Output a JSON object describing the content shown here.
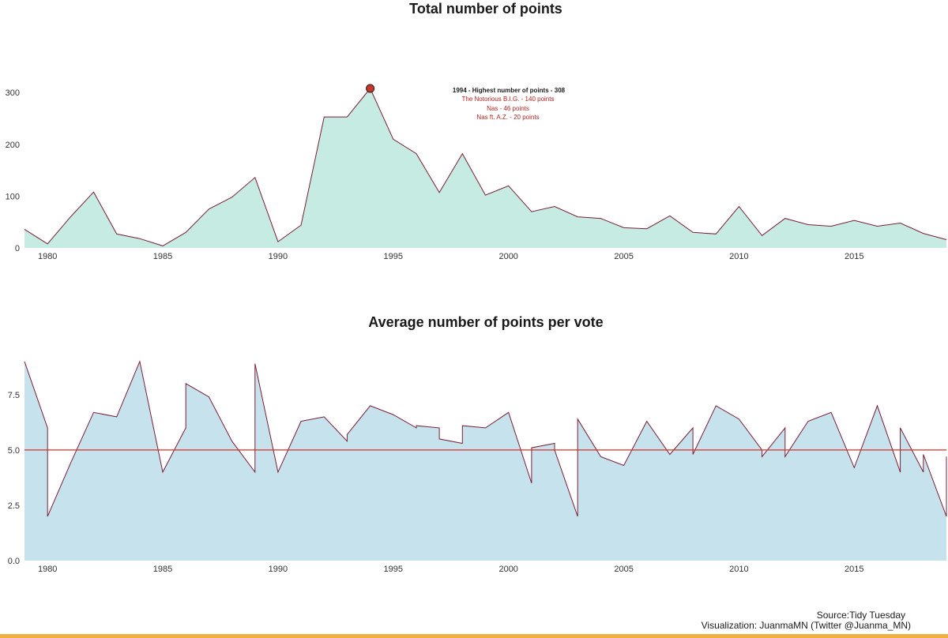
{
  "colors": {
    "area1": "#c5ebe2",
    "area2": "#c6e3ed",
    "line": "#7a1f35",
    "reference": "#d73027",
    "peak": "#c0392b",
    "annotation": "#b22222",
    "bottom_bar": "#f0b040"
  },
  "chart_data": [
    {
      "type": "area",
      "title": "Total number of points",
      "xlabel": "",
      "ylabel": "",
      "xlim": [
        1979,
        2019
      ],
      "ylim": [
        0,
        340
      ],
      "grid": false,
      "x_ticks": [
        "1980",
        "1985",
        "1990",
        "1995",
        "2000",
        "2005",
        "2010",
        "2015"
      ],
      "y_ticks": [
        "0",
        "100",
        "200",
        "300"
      ],
      "series": [
        {
          "x": [
            1979,
            1980,
            1981,
            1982,
            1983,
            1984,
            1985,
            1986,
            1987,
            1988,
            1989,
            1990,
            1991,
            1992,
            1993,
            1994,
            1995,
            1996,
            1997,
            1998,
            1999,
            2000,
            2001,
            2002,
            2003,
            2004,
            2005,
            2006,
            2007,
            2008,
            2009,
            2010,
            2011,
            2012,
            2013,
            2014,
            2015,
            2016,
            2017,
            2018,
            2019
          ],
          "values": [
            36,
            8,
            60,
            108,
            27,
            18,
            4,
            30,
            75,
            98,
            136,
            12,
            44,
            253,
            253,
            308,
            210,
            182,
            107,
            182,
            102,
            120,
            70,
            80,
            60,
            57,
            39,
            37,
            62,
            30,
            27,
            80,
            24,
            57,
            45,
            42,
            53,
            42,
            48,
            28,
            16
          ]
        }
      ],
      "highlight": {
        "x": 1994,
        "y": 308
      },
      "annotation": {
        "heading": "1994 - Highest number of points - 308",
        "lines": [
          "The Notorious B.I.G. - 140 points",
          "Nas - 46 points",
          "Nas ft. A.Z. - 20 points"
        ]
      }
    },
    {
      "type": "area",
      "title": "Average number of points per vote",
      "xlabel": "",
      "ylabel": "",
      "xlim": [
        1979,
        2019
      ],
      "ylim": [
        0,
        9.6
      ],
      "grid": false,
      "x_ticks": [
        "1980",
        "1985",
        "1990",
        "1995",
        "2000",
        "2005",
        "2010",
        "2015"
      ],
      "y_ticks": [
        "0.0",
        "2.5",
        "5.0",
        "7.5"
      ],
      "reference_line": 5.0,
      "series": [
        {
          "x": [
            1979,
            1980,
            1980,
            1981,
            1982,
            1983,
            1984,
            1985,
            1986,
            1986,
            1987,
            1988,
            1989,
            1989,
            1990,
            1991,
            1992,
            1993,
            1993,
            1994,
            1995,
            1996,
            1996,
            1997,
            1997,
            1998,
            1998,
            1999,
            2000,
            2001,
            2001,
            2002,
            2002,
            2003,
            2003,
            2004,
            2005,
            2006,
            2007,
            2008,
            2008,
            2009,
            2010,
            2011,
            2011,
            2012,
            2012,
            2013,
            2014,
            2015,
            2016,
            2017,
            2017,
            2018,
            2018,
            2019,
            2019
          ],
          "values": [
            9.0,
            6.0,
            2.0,
            4.4,
            6.7,
            6.5,
            9.0,
            4.0,
            6.0,
            8.0,
            7.4,
            5.4,
            4.0,
            8.9,
            4.0,
            6.3,
            6.5,
            5.4,
            5.7,
            7.0,
            6.6,
            6.0,
            6.1,
            6.0,
            5.5,
            5.3,
            6.1,
            6.0,
            6.7,
            3.5,
            5.1,
            5.3,
            5.0,
            2.0,
            6.4,
            4.7,
            4.3,
            6.3,
            4.8,
            6.0,
            4.8,
            7.0,
            6.4,
            5.0,
            4.7,
            6.0,
            4.7,
            6.3,
            6.7,
            4.2,
            7.0,
            4.0,
            6.0,
            4.0,
            4.8,
            2.0,
            4.7
          ]
        }
      ]
    }
  ],
  "caption": {
    "source": "Source:Tidy Tuesday",
    "visualization": "Visualization: JuanmaMN (Twitter @Juanma_MN)"
  }
}
